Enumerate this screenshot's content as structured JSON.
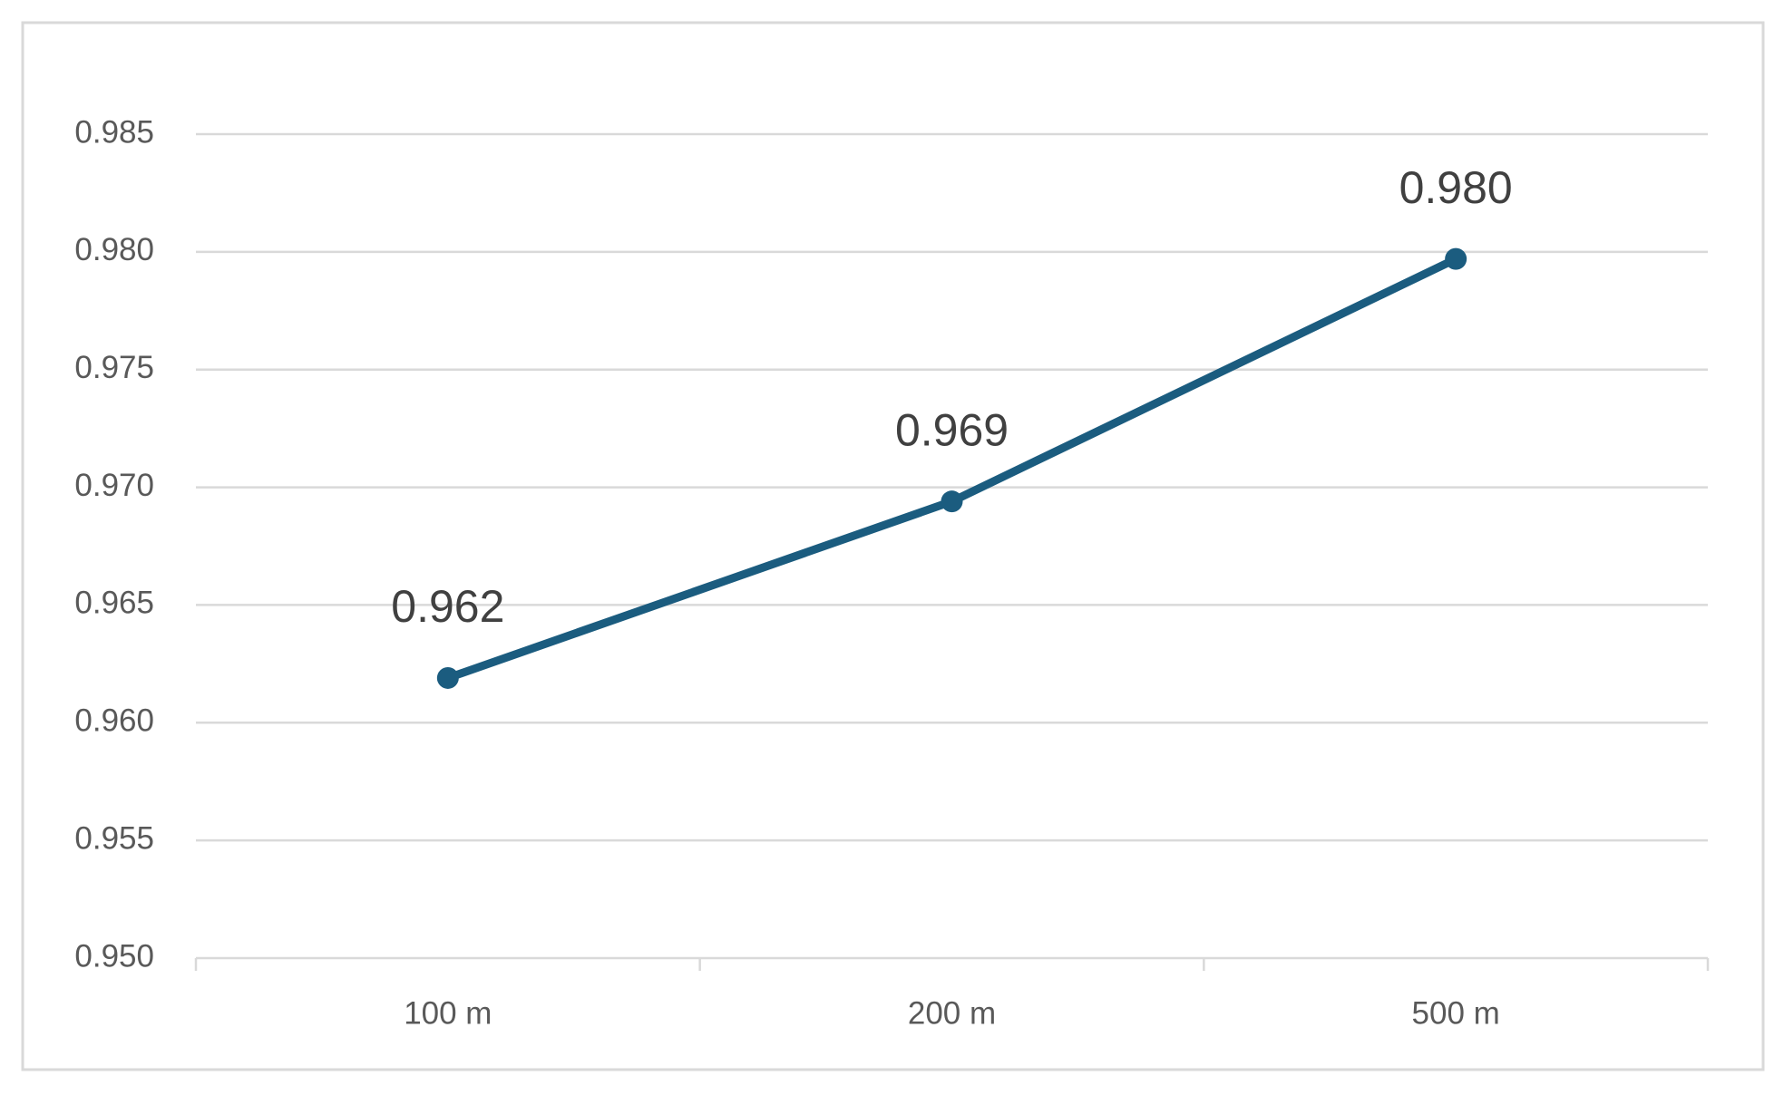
{
  "chart_data": {
    "type": "line",
    "categories": [
      "100 m",
      "200 m",
      "500 m"
    ],
    "series": [
      {
        "name": null,
        "color": "#1b5c7f",
        "values": [
          0.9619,
          0.9694,
          0.9797
        ],
        "value_labels": [
          "0.962",
          "0.969",
          "0.980"
        ]
      }
    ],
    "ylim": [
      0.95,
      0.985
    ],
    "yticks": [
      {
        "value": 0.95,
        "label": "0.950"
      },
      0.955,
      {
        "value": 0.96,
        "label": "0.960"
      },
      0.965,
      {
        "value": 0.97,
        "label": "0.970"
      },
      0.975,
      {
        "value": 0.98,
        "label": "0.980"
      },
      0.985
    ],
    "grid": true
  }
}
